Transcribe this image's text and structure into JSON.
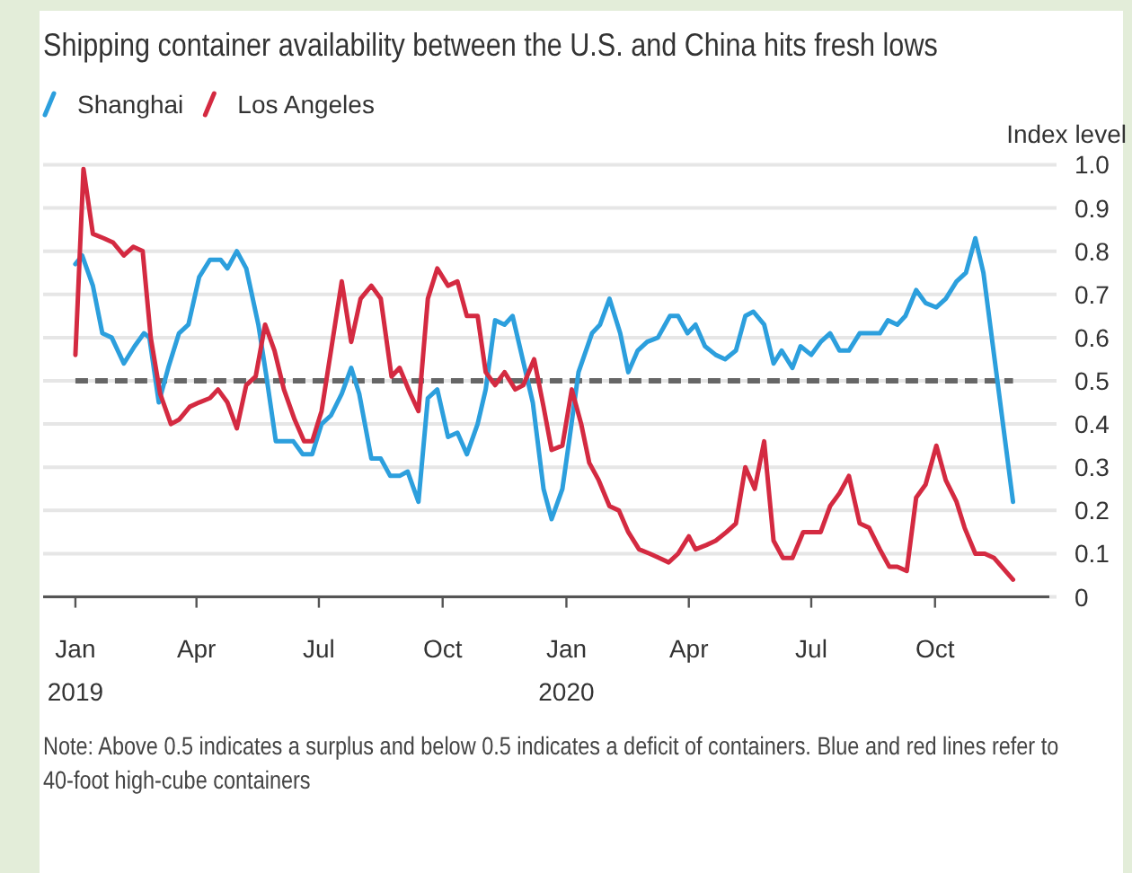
{
  "chart_data": {
    "type": "line",
    "title": "Shipping container availability between the U.S. and China hits fresh lows",
    "ylabel": "Index level",
    "xlim": [
      "2018-12-08",
      "2020-12-25"
    ],
    "xticks": [
      {
        "value": "2019-01-01",
        "label": "Jan\n2019"
      },
      {
        "value": "2019-04-01",
        "label": "Apr"
      },
      {
        "value": "2019-07-01",
        "label": "Jul"
      },
      {
        "value": "2019-10-01",
        "label": "Oct"
      },
      {
        "value": "2020-01-01",
        "label": "Jan\n2020"
      },
      {
        "value": "2020-04-01",
        "label": "Apr"
      },
      {
        "value": "2020-07-01",
        "label": "Jul"
      },
      {
        "value": "2020-10-01",
        "label": "Oct"
      }
    ],
    "ylim": [
      0,
      1
    ],
    "yticks": [
      0,
      0.1,
      0.2,
      0.3,
      0.4,
      0.5,
      0.6,
      0.7,
      0.8,
      0.9,
      {
        "value": 1,
        "label": "1.0"
      }
    ],
    "grid": "y",
    "legend": "top left",
    "ref_lines": [
      {
        "axis": "y",
        "value": 0.5,
        "color": "#666666",
        "line_style": "dashed"
      }
    ],
    "series": [
      {
        "name": "Shanghai",
        "color": "#2c9fdd",
        "x": [
          "2019-01-01",
          "2019-01-06",
          "2019-01-14",
          "2019-01-21",
          "2019-01-28",
          "2019-02-06",
          "2019-02-14",
          "2019-02-21",
          "2019-02-25",
          "2019-03-04",
          "2019-03-11",
          "2019-03-19",
          "2019-03-26",
          "2019-04-03",
          "2019-04-11",
          "2019-04-19",
          "2019-04-24",
          "2019-05-01",
          "2019-05-08",
          "2019-05-17",
          "2019-05-23",
          "2019-05-30",
          "2019-06-05",
          "2019-06-12",
          "2019-06-19",
          "2019-06-26",
          "2019-07-03",
          "2019-07-10",
          "2019-07-18",
          "2019-07-25",
          "2019-07-31",
          "2019-08-09",
          "2019-08-16",
          "2019-08-23",
          "2019-08-30",
          "2019-09-05",
          "2019-09-13",
          "2019-09-20",
          "2019-09-27",
          "2019-10-05",
          "2019-10-12",
          "2019-10-19",
          "2019-10-27",
          "2019-11-02",
          "2019-11-09",
          "2019-11-16",
          "2019-11-22",
          "2019-11-28",
          "2019-12-07",
          "2019-12-15",
          "2019-12-21",
          "2019-12-29",
          "2020-01-03",
          "2020-01-10",
          "2020-01-20",
          "2020-01-26",
          "2020-02-02",
          "2020-02-10",
          "2020-02-16",
          "2020-02-23",
          "2020-03-01",
          "2020-03-09",
          "2020-03-18",
          "2020-03-24",
          "2020-03-31",
          "2020-04-06",
          "2020-04-13",
          "2020-04-21",
          "2020-04-28",
          "2020-05-06",
          "2020-05-13",
          "2020-05-19",
          "2020-05-27",
          "2020-06-03",
          "2020-06-09",
          "2020-06-17",
          "2020-06-23",
          "2020-07-01",
          "2020-07-08",
          "2020-07-15",
          "2020-07-22",
          "2020-07-29",
          "2020-08-06",
          "2020-08-13",
          "2020-08-21",
          "2020-08-27",
          "2020-09-03",
          "2020-09-09",
          "2020-09-17",
          "2020-09-24",
          "2020-10-02",
          "2020-10-09",
          "2020-10-17",
          "2020-10-24",
          "2020-10-31",
          "2020-11-06",
          "2020-11-28"
        ],
        "values": [
          0.77,
          0.79,
          0.72,
          0.61,
          0.6,
          0.54,
          0.58,
          0.61,
          0.6,
          0.45,
          0.53,
          0.61,
          0.63,
          0.74,
          0.78,
          0.78,
          0.76,
          0.8,
          0.76,
          0.63,
          0.51,
          0.36,
          0.36,
          0.36,
          0.33,
          0.33,
          0.4,
          0.42,
          0.47,
          0.53,
          0.47,
          0.32,
          0.32,
          0.28,
          0.28,
          0.29,
          0.22,
          0.46,
          0.48,
          0.37,
          0.38,
          0.33,
          0.4,
          0.48,
          0.64,
          0.63,
          0.65,
          0.57,
          0.45,
          0.25,
          0.18,
          0.25,
          0.36,
          0.52,
          0.61,
          0.63,
          0.69,
          0.61,
          0.52,
          0.57,
          0.59,
          0.6,
          0.65,
          0.65,
          0.61,
          0.63,
          0.58,
          0.56,
          0.55,
          0.57,
          0.65,
          0.66,
          0.63,
          0.54,
          0.57,
          0.53,
          0.58,
          0.56,
          0.59,
          0.61,
          0.57,
          0.57,
          0.61,
          0.61,
          0.61,
          0.64,
          0.63,
          0.65,
          0.71,
          0.68,
          0.67,
          0.69,
          0.73,
          0.75,
          0.83,
          0.75,
          0.22
        ]
      },
      {
        "name": "Los Angeles",
        "color": "#d42a41",
        "x": [
          "2019-01-01",
          "2019-01-07",
          "2019-01-14",
          "2019-01-22",
          "2019-01-29",
          "2019-02-06",
          "2019-02-13",
          "2019-02-20",
          "2019-02-26",
          "2019-03-05",
          "2019-03-13",
          "2019-03-19",
          "2019-03-27",
          "2019-04-03",
          "2019-04-11",
          "2019-04-17",
          "2019-04-24",
          "2019-05-01",
          "2019-05-08",
          "2019-05-15",
          "2019-05-22",
          "2019-05-29",
          "2019-06-05",
          "2019-06-13",
          "2019-06-20",
          "2019-06-26",
          "2019-07-03",
          "2019-07-11",
          "2019-07-18",
          "2019-07-25",
          "2019-08-01",
          "2019-08-09",
          "2019-08-16",
          "2019-08-24",
          "2019-08-30",
          "2019-09-07",
          "2019-09-13",
          "2019-09-20",
          "2019-09-27",
          "2019-10-05",
          "2019-10-12",
          "2019-10-19",
          "2019-10-27",
          "2019-11-02",
          "2019-11-09",
          "2019-11-16",
          "2019-11-24",
          "2019-11-30",
          "2019-12-08",
          "2019-12-15",
          "2019-12-21",
          "2019-12-29",
          "2020-01-05",
          "2020-01-12",
          "2020-01-18",
          "2020-01-25",
          "2020-02-02",
          "2020-02-09",
          "2020-02-16",
          "2020-02-24",
          "2020-03-03",
          "2020-03-10",
          "2020-03-17",
          "2020-03-24",
          "2020-04-01",
          "2020-04-06",
          "2020-04-14",
          "2020-04-21",
          "2020-04-29",
          "2020-05-06",
          "2020-05-13",
          "2020-05-20",
          "2020-05-27",
          "2020-06-03",
          "2020-06-10",
          "2020-06-17",
          "2020-06-25",
          "2020-07-01",
          "2020-07-08",
          "2020-07-15",
          "2020-07-22",
          "2020-07-29",
          "2020-08-06",
          "2020-08-13",
          "2020-08-21",
          "2020-08-28",
          "2020-09-03",
          "2020-09-10",
          "2020-09-17",
          "2020-09-24",
          "2020-10-02",
          "2020-10-09",
          "2020-10-17",
          "2020-10-23",
          "2020-10-31",
          "2020-11-07",
          "2020-11-14",
          "2020-11-28"
        ],
        "values": [
          0.56,
          0.99,
          0.84,
          0.83,
          0.82,
          0.79,
          0.81,
          0.8,
          0.6,
          0.47,
          0.4,
          0.41,
          0.44,
          0.45,
          0.46,
          0.48,
          0.45,
          0.39,
          0.49,
          0.51,
          0.63,
          0.57,
          0.48,
          0.41,
          0.36,
          0.36,
          0.43,
          0.59,
          0.73,
          0.59,
          0.69,
          0.72,
          0.69,
          0.51,
          0.53,
          0.47,
          0.43,
          0.69,
          0.76,
          0.72,
          0.73,
          0.65,
          0.65,
          0.52,
          0.49,
          0.52,
          0.48,
          0.49,
          0.55,
          0.44,
          0.34,
          0.35,
          0.48,
          0.4,
          0.31,
          0.27,
          0.21,
          0.2,
          0.15,
          0.11,
          0.1,
          0.09,
          0.08,
          0.1,
          0.14,
          0.11,
          0.12,
          0.13,
          0.15,
          0.17,
          0.3,
          0.25,
          0.36,
          0.13,
          0.09,
          0.09,
          0.15,
          0.15,
          0.15,
          0.21,
          0.24,
          0.28,
          0.17,
          0.16,
          0.11,
          0.07,
          0.07,
          0.06,
          0.23,
          0.26,
          0.35,
          0.27,
          0.22,
          0.16,
          0.1,
          0.1,
          0.09,
          0.04
        ]
      }
    ],
    "annotations": [
      "Note: Above 0.5 indicates a surplus and below 0.5 indicates a deficit of containers. Blue and red lines refer to 40-foot high-cube containers"
    ]
  }
}
